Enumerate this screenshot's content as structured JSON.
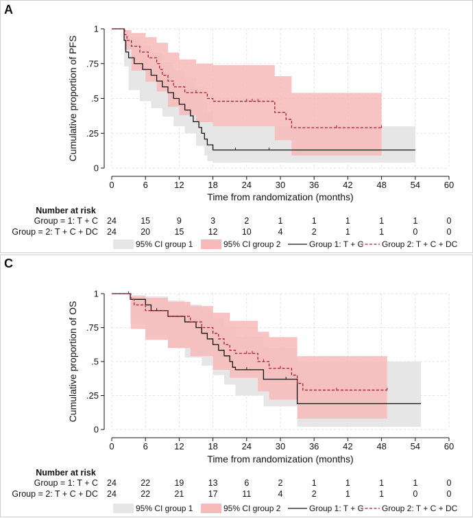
{
  "colors": {
    "ci1_fill": "#e6e6e6",
    "ci2_fill": "#f7b9b9",
    "group1_line": "#111111",
    "group2_line": "#a51d2d",
    "grid": "#d9d9d9"
  },
  "chart_data": [
    {
      "id": "A",
      "panel_label": "A",
      "type": "line",
      "subtype": "kaplan-meier step",
      "ylabel": "Cumulative proportion of PFS",
      "xlabel": "Time from randomization (months)",
      "xlim": [
        0,
        60
      ],
      "ylim": [
        0,
        1
      ],
      "x_ticks": [
        "0",
        "6",
        "12",
        "18",
        "24",
        "30",
        "36",
        "42",
        "48",
        "54",
        "60"
      ],
      "x_tick_values": [
        0,
        6,
        12,
        18,
        24,
        30,
        36,
        42,
        48,
        54,
        60
      ],
      "y_ticks": [
        "0",
        ".25",
        ".5",
        ".75",
        "1"
      ],
      "y_tick_values": [
        0,
        0.25,
        0.5,
        0.75,
        1
      ],
      "series": [
        {
          "name": "Group 1: T + C",
          "style": "solid",
          "points": [
            [
              0,
              1
            ],
            [
              2,
              1
            ],
            [
              2.2,
              0.917
            ],
            [
              2.5,
              0.833
            ],
            [
              3,
              0.792
            ],
            [
              4,
              0.75
            ],
            [
              5.5,
              0.708
            ],
            [
              7,
              0.667
            ],
            [
              8,
              0.625
            ],
            [
              9,
              0.583
            ],
            [
              10,
              0.542
            ],
            [
              11,
              0.5
            ],
            [
              12,
              0.458
            ],
            [
              13,
              0.417
            ],
            [
              14,
              0.375
            ],
            [
              14.5,
              0.333
            ],
            [
              15.5,
              0.292
            ],
            [
              16,
              0.25
            ],
            [
              16.5,
              0.208
            ],
            [
              17,
              0.167
            ],
            [
              18,
              0.13
            ],
            [
              54,
              0.13
            ]
          ],
          "censor_marks": [
            22,
            28
          ]
        },
        {
          "name": "Group 2: T + C + DC",
          "style": "dashed",
          "points": [
            [
              0,
              1
            ],
            [
              2,
              1
            ],
            [
              2.3,
              0.958
            ],
            [
              2.7,
              0.917
            ],
            [
              3.5,
              0.875
            ],
            [
              5,
              0.833
            ],
            [
              6.5,
              0.792
            ],
            [
              8,
              0.75
            ],
            [
              8.5,
              0.708
            ],
            [
              9,
              0.667
            ],
            [
              10,
              0.625
            ],
            [
              11,
              0.583
            ],
            [
              13,
              0.542
            ],
            [
              17,
              0.5
            ],
            [
              18,
              0.48
            ],
            [
              29,
              0.4
            ],
            [
              31,
              0.35
            ],
            [
              32,
              0.29
            ],
            [
              48,
              0.29
            ]
          ],
          "censor_marks": [
            15,
            24,
            25,
            26,
            40,
            48
          ]
        }
      ],
      "ci_bands": [
        {
          "name": "95% CI group 1",
          "upper": [
            [
              0,
              1
            ],
            [
              2,
              1
            ],
            [
              2.2,
              0.99
            ],
            [
              3,
              0.93
            ],
            [
              5,
              0.88
            ],
            [
              7,
              0.83
            ],
            [
              9,
              0.76
            ],
            [
              11,
              0.7
            ],
            [
              13,
              0.65
            ],
            [
              15,
              0.58
            ],
            [
              16.5,
              0.49
            ],
            [
              17,
              0.4
            ],
            [
              18,
              0.3
            ],
            [
              54,
              0.3
            ]
          ],
          "lower": [
            [
              0,
              1
            ],
            [
              2,
              1
            ],
            [
              2.2,
              0.73
            ],
            [
              3,
              0.56
            ],
            [
              5,
              0.48
            ],
            [
              7,
              0.43
            ],
            [
              9,
              0.37
            ],
            [
              11,
              0.3
            ],
            [
              13,
              0.25
            ],
            [
              15,
              0.16
            ],
            [
              16.5,
              0.09
            ],
            [
              17,
              0.05
            ],
            [
              18,
              0.04
            ],
            [
              54,
              0.04
            ]
          ]
        },
        {
          "name": "95% CI group 2",
          "upper": [
            [
              0,
              1
            ],
            [
              2,
              1
            ],
            [
              2.3,
              0.99
            ],
            [
              3.5,
              0.97
            ],
            [
              6,
              0.94
            ],
            [
              8,
              0.9
            ],
            [
              10,
              0.83
            ],
            [
              12,
              0.78
            ],
            [
              15,
              0.75
            ],
            [
              18,
              0.74
            ],
            [
              29,
              0.66
            ],
            [
              32,
              0.54
            ],
            [
              48,
              0.54
            ]
          ],
          "lower": [
            [
              0,
              1
            ],
            [
              2,
              1
            ],
            [
              2.3,
              0.85
            ],
            [
              3.5,
              0.7
            ],
            [
              6,
              0.62
            ],
            [
              8,
              0.55
            ],
            [
              10,
              0.44
            ],
            [
              12,
              0.38
            ],
            [
              15,
              0.33
            ],
            [
              18,
              0.3
            ],
            [
              29,
              0.2
            ],
            [
              32,
              0.09
            ],
            [
              48,
              0.09
            ]
          ]
        }
      ],
      "risk_table": {
        "header": "Number at risk",
        "rows": [
          {
            "label": "Group = 1: T + C",
            "values": [
              "24",
              "15",
              "9",
              "3",
              "2",
              "1",
              "1",
              "1",
              "1",
              "1",
              "0"
            ]
          },
          {
            "label": "Group = 2: T + C + DC",
            "values": [
              "24",
              "20",
              "15",
              "12",
              "10",
              "4",
              "2",
              "1",
              "1",
              "0",
              "0"
            ]
          }
        ]
      },
      "legend": [
        "95% CI group 1",
        "95% CI group 2",
        "Group 1: T + C",
        "Group 2: T + C + DC"
      ]
    },
    {
      "id": "C",
      "panel_label": "C",
      "type": "line",
      "subtype": "kaplan-meier step",
      "ylabel": "Cumulative proportion of OS",
      "xlabel": "Time from randomization (months)",
      "xlim": [
        0,
        60
      ],
      "ylim": [
        0,
        1
      ],
      "x_ticks": [
        "0",
        "6",
        "12",
        "18",
        "24",
        "30",
        "36",
        "42",
        "48",
        "54",
        "60"
      ],
      "x_tick_values": [
        0,
        6,
        12,
        18,
        24,
        30,
        36,
        42,
        48,
        54,
        60
      ],
      "y_ticks": [
        "0",
        ".25",
        ".5",
        ".75",
        "1"
      ],
      "y_tick_values": [
        0,
        0.25,
        0.5,
        0.75,
        1
      ],
      "series": [
        {
          "name": "Group 1: T + C",
          "style": "solid",
          "points": [
            [
              0,
              1
            ],
            [
              3,
              1
            ],
            [
              3.3,
              0.958
            ],
            [
              6,
              0.917
            ],
            [
              7,
              0.875
            ],
            [
              10,
              0.833
            ],
            [
              13,
              0.792
            ],
            [
              15,
              0.75
            ],
            [
              16,
              0.708
            ],
            [
              17,
              0.667
            ],
            [
              18,
              0.625
            ],
            [
              19,
              0.583
            ],
            [
              20,
              0.542
            ],
            [
              21,
              0.5
            ],
            [
              21.5,
              0.458
            ],
            [
              22,
              0.44
            ],
            [
              27,
              0.37
            ],
            [
              33,
              0.19
            ],
            [
              55,
              0.19
            ]
          ],
          "censor_marks": [
            8,
            20,
            24,
            31
          ]
        },
        {
          "name": "Group 2: T + C + DC",
          "style": "dashed",
          "points": [
            [
              0,
              1
            ],
            [
              3,
              1
            ],
            [
              3.4,
              0.958
            ],
            [
              4,
              0.917
            ],
            [
              6,
              0.875
            ],
            [
              10,
              0.833
            ],
            [
              14,
              0.792
            ],
            [
              16,
              0.75
            ],
            [
              18,
              0.708
            ],
            [
              19,
              0.667
            ],
            [
              20,
              0.625
            ],
            [
              21,
              0.583
            ],
            [
              22,
              0.56
            ],
            [
              26,
              0.5
            ],
            [
              28,
              0.45
            ],
            [
              32,
              0.4
            ],
            [
              33,
              0.34
            ],
            [
              34,
              0.29
            ],
            [
              49,
              0.29
            ]
          ],
          "censor_marks": [
            3,
            18,
            24,
            25,
            27,
            30,
            40,
            49
          ]
        }
      ],
      "ci_bands": [
        {
          "name": "95% CI group 1",
          "upper": [
            [
              0,
              1
            ],
            [
              3,
              1
            ],
            [
              3.3,
              0.99
            ],
            [
              6,
              0.98
            ],
            [
              10,
              0.95
            ],
            [
              13,
              0.92
            ],
            [
              16,
              0.89
            ],
            [
              18,
              0.82
            ],
            [
              20,
              0.76
            ],
            [
              22,
              0.68
            ],
            [
              27,
              0.6
            ],
            [
              33,
              0.5
            ],
            [
              55,
              0.5
            ]
          ],
          "lower": [
            [
              0,
              1
            ],
            [
              3,
              1
            ],
            [
              3.3,
              0.78
            ],
            [
              6,
              0.69
            ],
            [
              10,
              0.6
            ],
            [
              13,
              0.53
            ],
            [
              16,
              0.47
            ],
            [
              18,
              0.4
            ],
            [
              20,
              0.33
            ],
            [
              22,
              0.25
            ],
            [
              27,
              0.17
            ],
            [
              33,
              0.02
            ],
            [
              55,
              0.02
            ]
          ]
        },
        {
          "name": "95% CI group 2",
          "upper": [
            [
              0,
              1
            ],
            [
              3,
              1
            ],
            [
              3.4,
              0.98
            ],
            [
              6,
              0.97
            ],
            [
              10,
              0.94
            ],
            [
              14,
              0.91
            ],
            [
              18,
              0.86
            ],
            [
              21,
              0.8
            ],
            [
              26,
              0.72
            ],
            [
              28,
              0.68
            ],
            [
              33,
              0.54
            ],
            [
              49,
              0.54
            ]
          ],
          "lower": [
            [
              0,
              1
            ],
            [
              3,
              1
            ],
            [
              3.4,
              0.74
            ],
            [
              6,
              0.66
            ],
            [
              10,
              0.6
            ],
            [
              14,
              0.54
            ],
            [
              18,
              0.44
            ],
            [
              21,
              0.38
            ],
            [
              26,
              0.28
            ],
            [
              28,
              0.22
            ],
            [
              33,
              0.08
            ],
            [
              49,
              0.08
            ]
          ]
        }
      ],
      "risk_table": {
        "header": "Number at risk",
        "rows": [
          {
            "label": "Group = 1: T + C",
            "values": [
              "24",
              "22",
              "19",
              "13",
              "6",
              "2",
              "1",
              "1",
              "1",
              "1",
              "0"
            ]
          },
          {
            "label": "Group = 2: T + C + DC",
            "values": [
              "24",
              "22",
              "21",
              "17",
              "11",
              "4",
              "2",
              "1",
              "1",
              "0",
              "0"
            ]
          }
        ]
      },
      "legend": [
        "95% CI group 1",
        "95% CI group 2",
        "Group 1: T + C",
        "Group 2: T + C + DC"
      ]
    }
  ]
}
